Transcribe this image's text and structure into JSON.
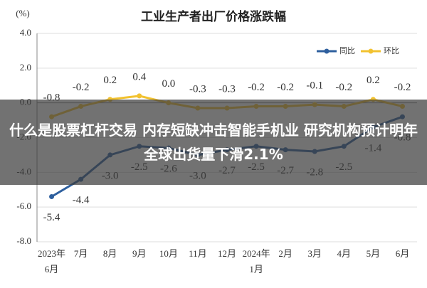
{
  "chart_data": {
    "type": "line",
    "title": "工业生产者出厂价格涨跌幅",
    "y_label": "(%)",
    "categories": [
      "2023年6月",
      "7月",
      "8月",
      "9月",
      "10月",
      "11月",
      "12月",
      "2024年1月",
      "2月",
      "3月",
      "4月",
      "5月",
      "6月"
    ],
    "series": [
      {
        "name": "同比",
        "color": "#2e5f9e",
        "values": [
          -5.4,
          -4.4,
          -3.0,
          -2.5,
          -2.6,
          -3.0,
          -2.7,
          -2.5,
          -2.7,
          -2.8,
          -2.5,
          -1.4,
          -0.8
        ],
        "value_labels": [
          "-5.4",
          "-4.4",
          "-3.0",
          "-2.5",
          "-2.6",
          "-3.0",
          "-2.7",
          "-2.5",
          "-2.7",
          "-2.8",
          "-2.5",
          "-1.4",
          "-0.8"
        ]
      },
      {
        "name": "环比",
        "color": "#f2c230",
        "values": [
          -0.8,
          -0.2,
          0.2,
          0.4,
          0.0,
          -0.3,
          -0.3,
          -0.2,
          -0.2,
          -0.1,
          -0.2,
          0.2,
          -0.2
        ],
        "value_labels": [
          "-0.8",
          "-0.2",
          "0.2",
          "0.4",
          "0.0",
          "-0.3",
          "-0.3",
          "-0.2",
          "-0.2",
          "-0.1",
          "-0.2",
          "0.2",
          "-0.2"
        ]
      }
    ],
    "ylim": [
      -8,
      4
    ],
    "yticks": [
      {
        "value": 4,
        "label": "4.0"
      },
      {
        "value": 2,
        "label": "2.0"
      },
      {
        "value": 0,
        "label": "0.0"
      },
      {
        "value": -2,
        "label": "-2.0"
      },
      {
        "value": -4,
        "label": "-4.0"
      },
      {
        "value": -6,
        "label": "-6.0"
      },
      {
        "value": -8,
        "label": "-8.0"
      }
    ],
    "grid": true,
    "legend": "top-right"
  },
  "overlay": {
    "text": "什么是股票杠杆交易 内存短缺冲击智能手机业 研究机构预计明年全球出货量下滑2.1%"
  }
}
